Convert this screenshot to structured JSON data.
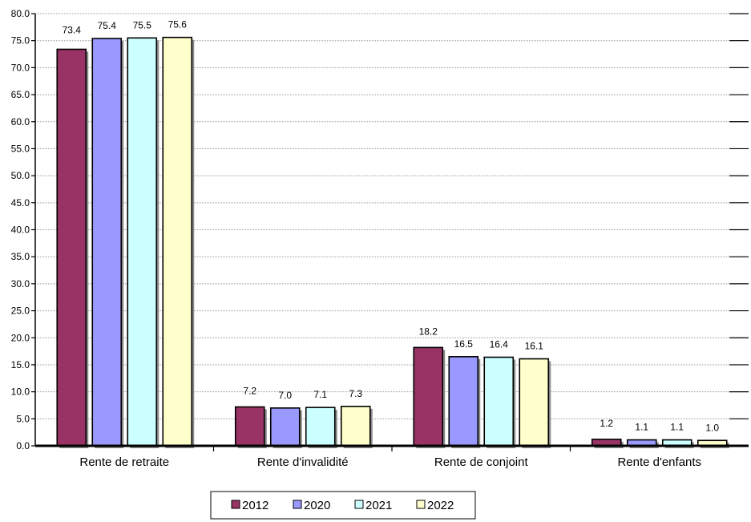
{
  "chart_data": {
    "type": "bar",
    "title": "",
    "xlabel": "",
    "ylabel": "",
    "ylim": [
      0,
      80
    ],
    "ytick_step": 5,
    "ytick_labels": [
      "0.0",
      "5.0",
      "10.0",
      "15.0",
      "20.0",
      "25.0",
      "30.0",
      "35.0",
      "40.0",
      "45.0",
      "50.0",
      "55.0",
      "60.0",
      "65.0",
      "70.0",
      "75.0",
      "80.0"
    ],
    "grid": true,
    "legend_position": "bottom",
    "categories": [
      "Rente de retraite",
      "Rente d'invalidité",
      "Rente de conjoint",
      "Rente d'enfants"
    ],
    "series": [
      {
        "name": "2012",
        "color": "#993366",
        "values": [
          73.4,
          7.2,
          18.2,
          1.2
        ],
        "labels": [
          "73.4",
          "7.2",
          "18.2",
          "1.2"
        ]
      },
      {
        "name": "2020",
        "color": "#9999FF",
        "values": [
          75.4,
          7.0,
          16.5,
          1.1
        ],
        "labels": [
          "75.4",
          "7.0",
          "16.5",
          "1.1"
        ]
      },
      {
        "name": "2021",
        "color": "#CCFFFF",
        "values": [
          75.5,
          7.1,
          16.4,
          1.1
        ],
        "labels": [
          "75.5",
          "7.1",
          "16.4",
          "1.1"
        ]
      },
      {
        "name": "2022",
        "color": "#FFFFCC",
        "values": [
          75.6,
          7.3,
          16.1,
          1.0
        ],
        "labels": [
          "75.6",
          "7.3",
          "16.1",
          "1.0"
        ]
      }
    ]
  }
}
